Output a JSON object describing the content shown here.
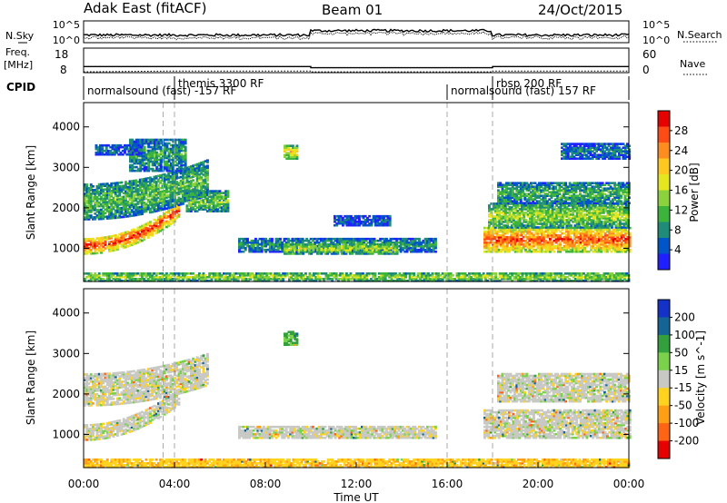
{
  "header": {
    "station": "Adak East (fitACF)",
    "beam": "Beam 01",
    "date": "24/Oct/2015"
  },
  "strip": {
    "nsky_label": "N.Sky",
    "nsearch_label": "N.Search",
    "freq_label_top": "Freq.",
    "freq_label_unit": "[MHz]",
    "nave_label": "Nave",
    "cpid_label": "CPID",
    "nsky_ticks": [
      "10^5",
      "10^0"
    ],
    "nsearch_ticks": [
      "10^5",
      "10^0"
    ],
    "freq_ticks": [
      "18",
      "8"
    ],
    "nave_ticks": [
      "60",
      "0"
    ],
    "freq_mhz": [
      [
        0,
        10.5
      ],
      [
        10.0,
        10.5
      ],
      [
        10.0,
        10.0
      ],
      [
        18.0,
        10.0
      ],
      [
        18.0,
        10.5
      ],
      [
        24,
        10.5
      ]
    ],
    "nave": [
      [
        0,
        2
      ],
      [
        4.0,
        4
      ],
      [
        10.0,
        4
      ],
      [
        10.0,
        2
      ],
      [
        18.0,
        2
      ],
      [
        18.0,
        4
      ],
      [
        24,
        4
      ]
    ],
    "cpid_segments": [
      {
        "label": "normalsound (fast) -157 RF",
        "start": 0.0,
        "row": 2
      },
      {
        "label": "themis 3300 RF",
        "start": 4.0,
        "row": 1
      },
      {
        "label": "normalsound (fast) 157 RF",
        "start": 16.0,
        "row": 2
      },
      {
        "label": "rbsp 200 RF",
        "start": 18.0,
        "row": 1
      }
    ]
  },
  "chart_data": [
    {
      "type": "heatmap",
      "quantity": "Power",
      "ylabel": "Slant Range [km]",
      "xlim": [
        0,
        24
      ],
      "ylim": [
        180,
        4600
      ],
      "yticks": [
        1000,
        2000,
        3000,
        4000
      ],
      "colorbar_label": "Power [dB]",
      "colorbar_ticks": [
        "28",
        "24",
        "20",
        "16",
        "12",
        "8",
        "4"
      ],
      "colorbar_range": [
        0,
        30
      ],
      "colorbar_colors": [
        "#1f1fff",
        "#0055c8",
        "#1e8c78",
        "#3cb43c",
        "#8cd23c",
        "#e6e61e",
        "#ffc81e",
        "#ff8c1e",
        "#ff4b14",
        "#e60000"
      ],
      "regions": [
        {
          "t0": 0.0,
          "t1": 4.2,
          "r0": 850,
          "r1": 1250,
          "value": 26,
          "rise": 900
        },
        {
          "t0": 0.0,
          "t1": 5.4,
          "r0": 1700,
          "r1": 2600,
          "value": 11,
          "rise": 600
        },
        {
          "t0": 2.0,
          "t1": 4.5,
          "r0": 2900,
          "r1": 3700,
          "value": 9,
          "rise": 0
        },
        {
          "t0": 4.5,
          "t1": 6.3,
          "r0": 1900,
          "r1": 2400,
          "value": 12,
          "rise": 0
        },
        {
          "t0": 6.8,
          "t1": 15.5,
          "r0": 900,
          "r1": 1250,
          "value": 8,
          "rise": 0
        },
        {
          "t0": 8.8,
          "t1": 13.8,
          "r0": 850,
          "r1": 1100,
          "value": 15,
          "rise": 0
        },
        {
          "t0": 11.0,
          "t1": 13.5,
          "r0": 1550,
          "r1": 1800,
          "value": 5,
          "rise": 0
        },
        {
          "t0": 17.6,
          "t1": 24.0,
          "r0": 900,
          "r1": 1500,
          "value": 25,
          "rise": 0
        },
        {
          "t0": 17.8,
          "t1": 24.0,
          "r0": 1500,
          "r1": 2100,
          "value": 14,
          "rise": 0
        },
        {
          "t0": 18.2,
          "t1": 24.0,
          "r0": 2100,
          "r1": 2600,
          "value": 10,
          "rise": 0
        },
        {
          "t0": 21.0,
          "t1": 24.0,
          "r0": 3200,
          "r1": 3600,
          "value": 6,
          "rise": 0
        },
        {
          "t0": 0.5,
          "t1": 2.5,
          "r0": 3300,
          "r1": 3550,
          "value": 5,
          "rise": 0
        },
        {
          "t0": 8.8,
          "t1": 9.4,
          "r0": 3200,
          "r1": 3550,
          "value": 18,
          "rise": 0
        },
        {
          "t0": 0.0,
          "t1": 24.0,
          "r0": 180,
          "r1": 380,
          "value": 14,
          "rise": 0
        }
      ]
    },
    {
      "type": "heatmap",
      "quantity": "Velocity",
      "ylabel": "Slant Range [km]",
      "xlabel": "Time UT",
      "xlim": [
        0,
        24
      ],
      "ylim": [
        180,
        4600
      ],
      "yticks": [
        1000,
        2000,
        3000,
        4000
      ],
      "xticks": [
        "00:00",
        "04:00",
        "08:00",
        "12:00",
        "16:00",
        "20:00",
        "00:00"
      ],
      "colorbar_label": "Velocity [m s^-1]",
      "colorbar_ticks": [
        "200",
        "100",
        "50",
        "15",
        "-15",
        "-50",
        "-100",
        "-200"
      ],
      "colorbar_colors": [
        "#1432c8",
        "#146496",
        "#32a03c",
        "#7ad24a",
        "#c8c8c4",
        "#ffd21e",
        "#ffa014",
        "#ff6414",
        "#e60000"
      ],
      "regions": [
        {
          "t0": 0.0,
          "t1": 4.2,
          "r0": 850,
          "r1": 1250,
          "value": 0,
          "rise": 900
        },
        {
          "t0": 0.0,
          "t1": 5.4,
          "r0": 1700,
          "r1": 2500,
          "value": 0,
          "rise": 500
        },
        {
          "t0": 6.8,
          "t1": 15.5,
          "r0": 900,
          "r1": 1200,
          "value": 0,
          "rise": 0
        },
        {
          "t0": 17.6,
          "t1": 24.0,
          "r0": 900,
          "r1": 1600,
          "value": 0,
          "rise": 0
        },
        {
          "t0": 18.2,
          "t1": 24.0,
          "r0": 1800,
          "r1": 2500,
          "value": 0,
          "rise": 0
        },
        {
          "t0": 8.8,
          "t1": 9.4,
          "r0": 3200,
          "r1": 3550,
          "value": 60,
          "rise": 0
        },
        {
          "t0": 0.0,
          "t1": 24.0,
          "r0": 180,
          "r1": 380,
          "value": -40,
          "rise": 0
        }
      ]
    }
  ],
  "time_markers_hours": [
    3.5,
    4.0,
    16.0,
    18.0
  ]
}
